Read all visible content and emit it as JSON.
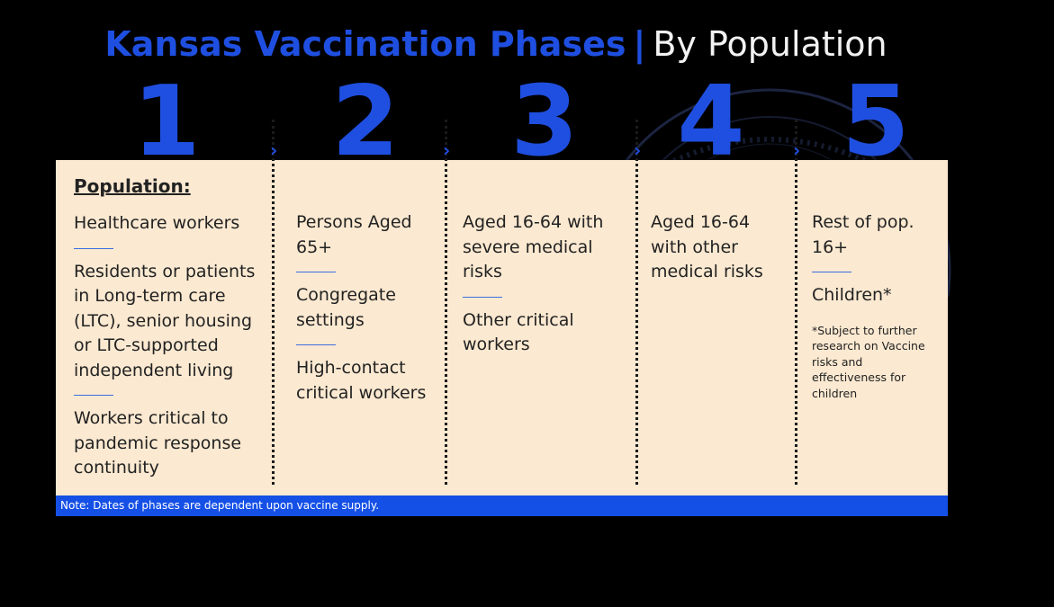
{
  "title": {
    "main": "Kansas Vaccination Phases",
    "separator": "|",
    "sub": "By Population"
  },
  "phases": [
    {
      "number": "1",
      "heading": "Population:",
      "items": [
        "Healthcare workers",
        "Residents or patients in Long-term care (LTC), senior housing or LTC-supported independent living",
        "Workers critical to pandemic response continuity"
      ]
    },
    {
      "number": "2",
      "items": [
        "Persons Aged 65+",
        "Congregate settings",
        "High-contact critical workers"
      ]
    },
    {
      "number": "3",
      "items": [
        "Aged 16-64 with severe medical risks",
        "Other critical workers"
      ]
    },
    {
      "number": "4",
      "items": [
        "Aged 16-64 with other medical risks"
      ]
    },
    {
      "number": "5",
      "items": [
        "Rest of pop. 16+",
        "Children*"
      ],
      "footnote": "*Subject to further research on Vaccine risks and effectiveness for children"
    }
  ],
  "note": "Note: Dates of phases are dependent upon vaccine supply.",
  "colors": {
    "accent_blue": "#1f4fe0",
    "panel": "#fbe9d1",
    "note_bar": "#1550e6",
    "background": "#000000"
  },
  "icons": {
    "arrow": "chevron-right-icon",
    "seal": "state-seal-watermark"
  }
}
